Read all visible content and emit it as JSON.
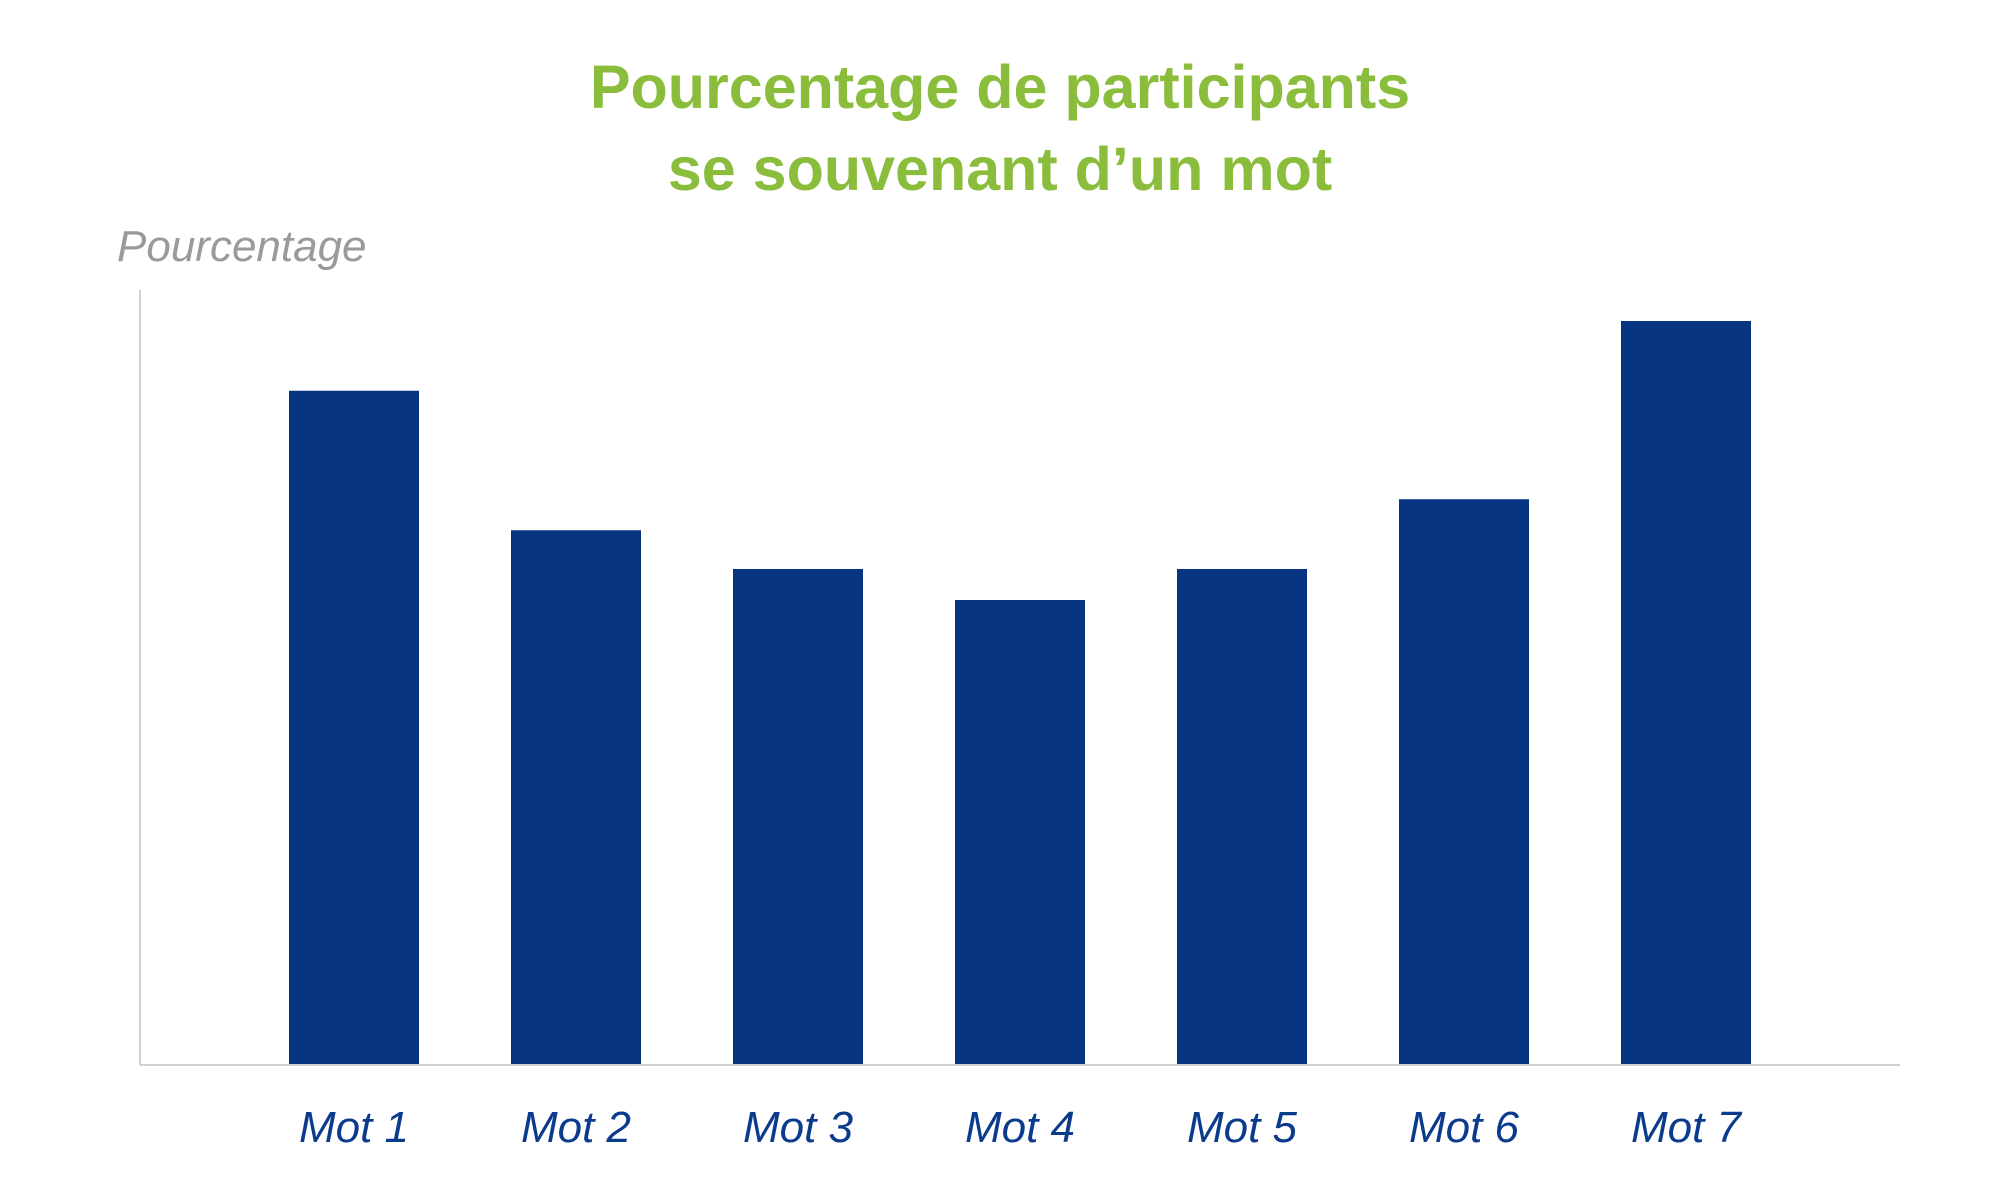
{
  "chart_data": {
    "type": "bar",
    "title": "Pourcentage de participants se souvenant d’un mot",
    "title_lines": [
      "Pourcentage de participants",
      "se souvenant d’un mot"
    ],
    "xlabel": "",
    "ylabel": "Pourcentage",
    "categories": [
      "Mot 1",
      "Mot 2",
      "Mot 3",
      "Mot 4",
      "Mot 5",
      "Mot 6",
      "Mot 7"
    ],
    "values": [
      87,
      69,
      64,
      60,
      64,
      73,
      96
    ],
    "ylim": [
      0,
      100
    ],
    "grid": false,
    "legend": "none",
    "bar_color": "#063480",
    "title_color": "#8bbd3c",
    "tick_label_color": "#0b3b8c",
    "axis_color": "#d0d0d0"
  }
}
